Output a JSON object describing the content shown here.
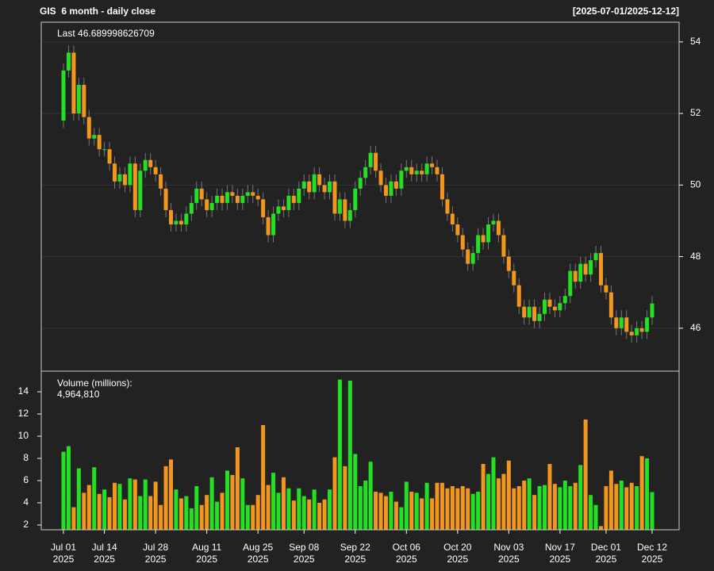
{
  "chart_data": {
    "type": "candlestick",
    "title": "GIS  6 month - daily close",
    "date_range": "[2025-07-01/2025-12-12]",
    "last_label": "Last 46.689998626709",
    "up_color": "#22e022",
    "down_color": "#f3961c",
    "grid": true,
    "x": [
      "2025-07-01",
      "2025-07-02",
      "2025-07-03",
      "2025-07-07",
      "2025-07-08",
      "2025-07-09",
      "2025-07-10",
      "2025-07-11",
      "2025-07-14",
      "2025-07-15",
      "2025-07-16",
      "2025-07-17",
      "2025-07-18",
      "2025-07-21",
      "2025-07-22",
      "2025-07-23",
      "2025-07-24",
      "2025-07-25",
      "2025-07-28",
      "2025-07-29",
      "2025-07-30",
      "2025-07-31",
      "2025-08-01",
      "2025-08-04",
      "2025-08-05",
      "2025-08-06",
      "2025-08-07",
      "2025-08-08",
      "2025-08-11",
      "2025-08-12",
      "2025-08-13",
      "2025-08-14",
      "2025-08-15",
      "2025-08-18",
      "2025-08-19",
      "2025-08-20",
      "2025-08-21",
      "2025-08-22",
      "2025-08-25",
      "2025-08-26",
      "2025-08-27",
      "2025-08-28",
      "2025-08-29",
      "2025-09-02",
      "2025-09-03",
      "2025-09-04",
      "2025-09-05",
      "2025-09-08",
      "2025-09-09",
      "2025-09-10",
      "2025-09-11",
      "2025-09-12",
      "2025-09-15",
      "2025-09-16",
      "2025-09-17",
      "2025-09-18",
      "2025-09-19",
      "2025-09-22",
      "2025-09-23",
      "2025-09-24",
      "2025-09-25",
      "2025-09-26",
      "2025-09-29",
      "2025-09-30",
      "2025-10-01",
      "2025-10-02",
      "2025-10-03",
      "2025-10-06",
      "2025-10-07",
      "2025-10-08",
      "2025-10-09",
      "2025-10-10",
      "2025-10-13",
      "2025-10-14",
      "2025-10-15",
      "2025-10-16",
      "2025-10-17",
      "2025-10-20",
      "2025-10-21",
      "2025-10-22",
      "2025-10-23",
      "2025-10-24",
      "2025-10-27",
      "2025-10-28",
      "2025-10-29",
      "2025-10-30",
      "2025-10-31",
      "2025-11-03",
      "2025-11-04",
      "2025-11-05",
      "2025-11-06",
      "2025-11-07",
      "2025-11-10",
      "2025-11-11",
      "2025-11-12",
      "2025-11-13",
      "2025-11-14",
      "2025-11-17",
      "2025-11-18",
      "2025-11-19",
      "2025-11-20",
      "2025-11-21",
      "2025-11-24",
      "2025-11-25",
      "2025-11-26",
      "2025-11-28",
      "2025-12-01",
      "2025-12-02",
      "2025-12-03",
      "2025-12-04",
      "2025-12-05",
      "2025-12-08",
      "2025-12-09",
      "2025-12-10",
      "2025-12-11",
      "2025-12-12"
    ],
    "open": [
      51.8,
      53.2,
      53.7,
      52.0,
      52.8,
      51.9,
      51.3,
      51.4,
      51.0,
      51.0,
      50.6,
      50.1,
      50.3,
      50.0,
      50.6,
      49.3,
      50.4,
      50.7,
      50.5,
      50.3,
      49.9,
      49.3,
      48.9,
      49.0,
      48.9,
      49.2,
      49.5,
      49.9,
      49.6,
      49.3,
      49.5,
      49.7,
      49.5,
      49.8,
      49.7,
      49.5,
      49.7,
      49.8,
      49.7,
      49.6,
      49.1,
      48.6,
      49.2,
      49.4,
      49.3,
      49.7,
      49.5,
      49.9,
      50.1,
      49.8,
      50.3,
      50.0,
      49.8,
      50.1,
      49.2,
      49.6,
      49.0,
      49.3,
      49.9,
      50.2,
      50.5,
      50.9,
      50.4,
      50.0,
      49.7,
      50.1,
      49.9,
      50.4,
      50.5,
      50.3,
      50.4,
      50.3,
      50.6,
      50.5,
      50.3,
      49.6,
      49.2,
      48.9,
      48.6,
      48.2,
      47.8,
      48.1,
      48.6,
      48.4,
      48.9,
      49.0,
      48.6,
      48.0,
      47.6,
      47.2,
      46.6,
      46.3,
      46.6,
      46.2,
      46.4,
      46.8,
      46.6,
      46.5,
      46.7,
      46.9,
      47.6,
      47.3,
      47.8,
      47.5,
      47.9,
      48.1,
      47.2,
      47.0,
      46.3,
      46.0,
      46.3,
      45.9,
      45.8,
      46.0,
      45.9,
      46.3
    ],
    "high": [
      53.4,
      53.9,
      53.9,
      53.0,
      53.0,
      52.1,
      51.6,
      51.6,
      51.2,
      51.2,
      50.8,
      50.5,
      50.5,
      50.8,
      50.8,
      50.6,
      50.9,
      50.9,
      50.7,
      50.5,
      50.1,
      49.5,
      49.2,
      49.2,
      49.4,
      49.7,
      50.1,
      50.1,
      49.8,
      49.7,
      49.9,
      49.9,
      50.0,
      50.0,
      49.9,
      49.9,
      50.0,
      50.0,
      49.9,
      49.8,
      49.3,
      49.4,
      49.6,
      49.6,
      49.9,
      49.9,
      50.1,
      50.3,
      50.3,
      50.5,
      50.5,
      50.2,
      50.3,
      50.3,
      49.8,
      49.8,
      49.5,
      50.1,
      50.4,
      50.7,
      51.1,
      51.1,
      50.6,
      50.2,
      50.3,
      50.3,
      50.6,
      50.7,
      50.7,
      50.6,
      50.6,
      50.8,
      50.8,
      50.7,
      50.5,
      49.8,
      49.4,
      49.1,
      48.8,
      48.4,
      48.3,
      48.8,
      48.8,
      49.1,
      49.2,
      49.2,
      48.8,
      48.2,
      47.8,
      47.4,
      46.8,
      46.8,
      46.8,
      46.6,
      47.0,
      47.0,
      46.8,
      46.9,
      47.1,
      47.8,
      47.8,
      48.0,
      48.0,
      48.1,
      48.3,
      48.3,
      47.4,
      47.2,
      46.5,
      46.5,
      46.5,
      46.1,
      46.2,
      46.2,
      46.5,
      46.9
    ],
    "low": [
      51.6,
      53.0,
      51.8,
      51.8,
      51.7,
      51.1,
      51.1,
      50.8,
      50.8,
      50.4,
      49.9,
      49.9,
      49.8,
      49.8,
      49.1,
      49.1,
      50.2,
      50.3,
      50.1,
      49.7,
      49.1,
      48.7,
      48.7,
      48.7,
      48.7,
      49.0,
      49.3,
      49.4,
      49.1,
      49.1,
      49.3,
      49.3,
      49.3,
      49.5,
      49.3,
      49.3,
      49.5,
      49.5,
      49.4,
      48.9,
      48.4,
      48.4,
      49.0,
      49.1,
      49.1,
      49.3,
      49.3,
      49.7,
      49.6,
      49.6,
      49.8,
      49.6,
      49.6,
      49.0,
      49.0,
      48.8,
      48.8,
      49.1,
      49.7,
      50.0,
      50.3,
      50.2,
      49.8,
      49.5,
      49.5,
      49.7,
      49.7,
      50.2,
      50.1,
      50.1,
      50.1,
      50.1,
      50.3,
      50.1,
      49.4,
      49.0,
      48.7,
      48.4,
      48.0,
      47.6,
      47.6,
      47.9,
      48.2,
      48.2,
      48.7,
      48.4,
      47.8,
      47.4,
      47.0,
      46.4,
      46.1,
      46.1,
      46.0,
      46.0,
      46.2,
      46.4,
      46.3,
      46.3,
      46.5,
      46.7,
      47.1,
      47.1,
      47.3,
      47.3,
      47.7,
      47.0,
      46.8,
      46.1,
      45.8,
      45.8,
      45.7,
      45.6,
      45.6,
      45.7,
      45.7,
      46.1
    ],
    "close": [
      53.2,
      53.7,
      52.0,
      52.8,
      51.9,
      51.3,
      51.4,
      51.0,
      51.0,
      50.6,
      50.1,
      50.3,
      50.0,
      50.6,
      49.3,
      50.4,
      50.7,
      50.5,
      50.3,
      49.9,
      49.3,
      48.9,
      49.0,
      48.9,
      49.2,
      49.5,
      49.9,
      49.6,
      49.3,
      49.5,
      49.7,
      49.5,
      49.8,
      49.7,
      49.5,
      49.7,
      49.8,
      49.7,
      49.6,
      49.1,
      48.6,
      49.2,
      49.4,
      49.3,
      49.7,
      49.5,
      49.9,
      50.1,
      49.8,
      50.3,
      50.0,
      49.8,
      50.1,
      49.2,
      49.6,
      49.0,
      49.3,
      49.9,
      50.2,
      50.5,
      50.9,
      50.4,
      50.0,
      49.7,
      50.1,
      49.9,
      50.4,
      50.5,
      50.3,
      50.4,
      50.3,
      50.6,
      50.5,
      50.3,
      49.6,
      49.2,
      48.9,
      48.6,
      48.2,
      47.8,
      48.1,
      48.6,
      48.4,
      48.9,
      49.0,
      48.6,
      48.0,
      47.6,
      47.2,
      46.6,
      46.3,
      46.6,
      46.2,
      46.4,
      46.8,
      46.6,
      46.5,
      46.7,
      46.9,
      47.6,
      47.3,
      47.8,
      47.5,
      47.9,
      48.1,
      47.2,
      47.0,
      46.3,
      46.0,
      46.3,
      45.9,
      45.8,
      46.0,
      45.9,
      46.3,
      46.689998626709
    ],
    "ylim": [
      44.8,
      54.55
    ],
    "yticks": [
      46,
      48,
      50,
      52,
      54
    ],
    "xticks": [
      {
        "value": "2025-07-01",
        "label": "Jul 01",
        "sublabel": "2025"
      },
      {
        "value": "2025-07-14",
        "label": "Jul 14",
        "sublabel": "2025"
      },
      {
        "value": "2025-07-28",
        "label": "Jul 28",
        "sublabel": "2025"
      },
      {
        "value": "2025-08-11",
        "label": "Aug 11",
        "sublabel": "2025"
      },
      {
        "value": "2025-08-25",
        "label": "Aug 25",
        "sublabel": "2025"
      },
      {
        "value": "2025-09-08",
        "label": "Sep 08",
        "sublabel": "2025"
      },
      {
        "value": "2025-09-22",
        "label": "Sep 22",
        "sublabel": "2025"
      },
      {
        "value": "2025-10-06",
        "label": "Oct 06",
        "sublabel": "2025"
      },
      {
        "value": "2025-10-20",
        "label": "Oct 20",
        "sublabel": "2025"
      },
      {
        "value": "2025-11-03",
        "label": "Nov 03",
        "sublabel": "2025"
      },
      {
        "value": "2025-11-17",
        "label": "Nov 17",
        "sublabel": "2025"
      },
      {
        "value": "2025-12-01",
        "label": "Dec 01",
        "sublabel": "2025"
      },
      {
        "value": "2025-12-12",
        "label": "Dec 12",
        "sublabel": "2025"
      }
    ],
    "volume": {
      "title": "Volume (millions):",
      "last_label": "4,964,810",
      "ylim": [
        1.57,
        15.86
      ],
      "yticks": [
        2,
        4,
        6,
        8,
        10,
        12,
        14
      ],
      "values": [
        8.6,
        9.1,
        3.6,
        7.1,
        4.9,
        5.6,
        7.2,
        4.8,
        5.2,
        4.5,
        5.8,
        5.7,
        4.3,
        6.2,
        6.1,
        4.6,
        6.1,
        4.6,
        5.9,
        3.8,
        7.3,
        7.9,
        5.2,
        4.4,
        4.6,
        3.5,
        5.5,
        3.8,
        4.7,
        6.3,
        4.1,
        4.9,
        6.9,
        6.5,
        9.0,
        6.2,
        3.8,
        3.8,
        4.7,
        11.0,
        5.6,
        6.7,
        4.9,
        6.3,
        5.3,
        4.2,
        5.3,
        4.6,
        4.3,
        5.2,
        4.0,
        4.3,
        5.2,
        8.1,
        15.1,
        7.3,
        15.0,
        8.4,
        5.5,
        6.0,
        7.7,
        5.0,
        4.9,
        4.6,
        5.0,
        4.1,
        3.6,
        5.9,
        5.0,
        4.9,
        4.4,
        5.8,
        4.4,
        5.8,
        5.8,
        5.3,
        5.5,
        5.3,
        5.5,
        5.3,
        4.8,
        5.0,
        7.5,
        6.6,
        8.1,
        6.2,
        6.6,
        7.8,
        5.3,
        5.5,
        6.0,
        6.2,
        4.7,
        5.5,
        5.6,
        7.5,
        5.7,
        5.4,
        6.0,
        5.5,
        5.8,
        7.4,
        11.5,
        4.7,
        3.8,
        1.9,
        5.5,
        6.9,
        5.7,
        6.0,
        5.4,
        5.8,
        5.5,
        8.2,
        8.0,
        4.96481
      ]
    }
  }
}
